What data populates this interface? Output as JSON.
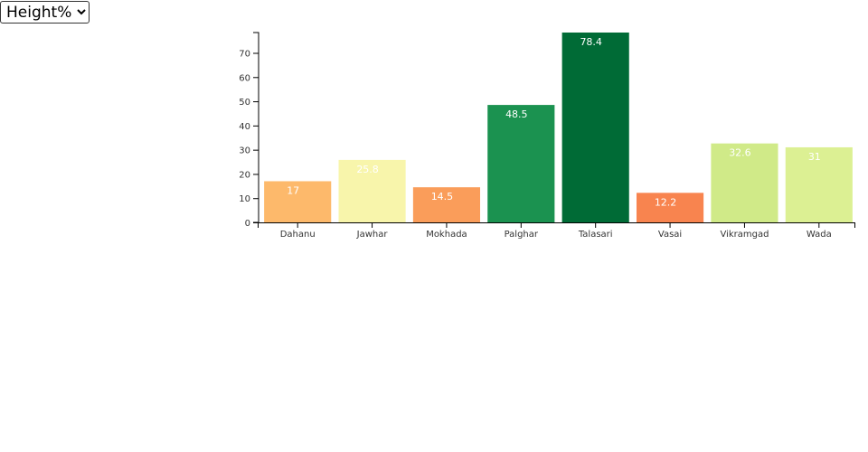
{
  "controls": {
    "metric_select": {
      "selected": "Height%",
      "options": [
        "Height%"
      ]
    }
  },
  "chart_data": {
    "type": "bar",
    "categories": [
      "Dahanu",
      "Jawhar",
      "Mokhada",
      "Palghar",
      "Talasari",
      "Vasai",
      "Vikramgad",
      "Wada"
    ],
    "values": [
      17,
      25.8,
      14.5,
      48.5,
      78.4,
      12.2,
      32.6,
      31
    ],
    "data_labels": [
      "17",
      "25.8",
      "14.5",
      "48.5",
      "78.4",
      "12.2",
      "32.6",
      "31"
    ],
    "colors": [
      "#fdb96b",
      "#f8f5ab",
      "#fa9d5a",
      "#1b9250",
      "#006b36",
      "#f8844f",
      "#d0ea88",
      "#dcf093"
    ],
    "ylim": [
      0,
      78.4
    ],
    "y_ticks": [
      0,
      10,
      20,
      30,
      40,
      50,
      60,
      70
    ],
    "title": "",
    "xlabel": "",
    "ylabel": "",
    "grid": false,
    "legend": "none"
  }
}
